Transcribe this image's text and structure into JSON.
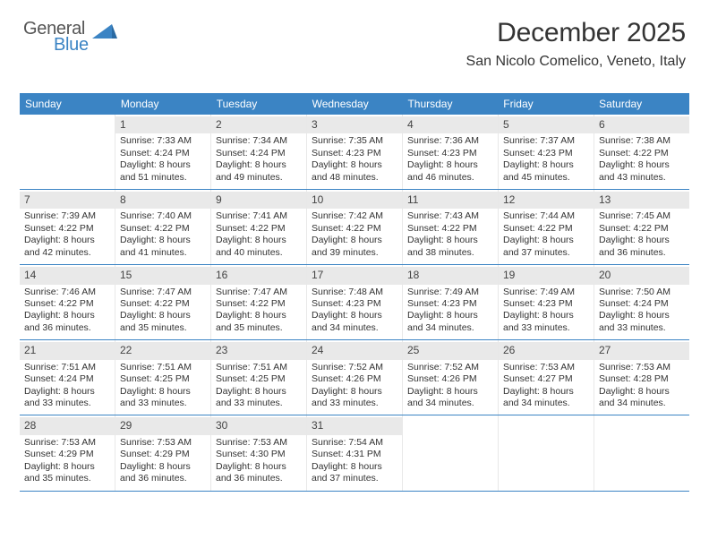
{
  "logo": {
    "general": "General",
    "blue": "Blue",
    "blue_color": "#3b84c4",
    "gray_color": "#555555"
  },
  "header": {
    "title": "December 2025",
    "location": "San Nicolo Comelico, Veneto, Italy"
  },
  "colors": {
    "header_bg": "#3b84c4",
    "header_fg": "#ffffff",
    "daynum_bg": "#e9e9e9",
    "row_border": "#3b84c4"
  },
  "days_of_week": [
    "Sunday",
    "Monday",
    "Tuesday",
    "Wednesday",
    "Thursday",
    "Friday",
    "Saturday"
  ],
  "weeks": [
    [
      {
        "n": "",
        "sr": "",
        "ss": "",
        "dl": ""
      },
      {
        "n": "1",
        "sr": "Sunrise: 7:33 AM",
        "ss": "Sunset: 4:24 PM",
        "dl": "Daylight: 8 hours and 51 minutes."
      },
      {
        "n": "2",
        "sr": "Sunrise: 7:34 AM",
        "ss": "Sunset: 4:24 PM",
        "dl": "Daylight: 8 hours and 49 minutes."
      },
      {
        "n": "3",
        "sr": "Sunrise: 7:35 AM",
        "ss": "Sunset: 4:23 PM",
        "dl": "Daylight: 8 hours and 48 minutes."
      },
      {
        "n": "4",
        "sr": "Sunrise: 7:36 AM",
        "ss": "Sunset: 4:23 PM",
        "dl": "Daylight: 8 hours and 46 minutes."
      },
      {
        "n": "5",
        "sr": "Sunrise: 7:37 AM",
        "ss": "Sunset: 4:23 PM",
        "dl": "Daylight: 8 hours and 45 minutes."
      },
      {
        "n": "6",
        "sr": "Sunrise: 7:38 AM",
        "ss": "Sunset: 4:22 PM",
        "dl": "Daylight: 8 hours and 43 minutes."
      }
    ],
    [
      {
        "n": "7",
        "sr": "Sunrise: 7:39 AM",
        "ss": "Sunset: 4:22 PM",
        "dl": "Daylight: 8 hours and 42 minutes."
      },
      {
        "n": "8",
        "sr": "Sunrise: 7:40 AM",
        "ss": "Sunset: 4:22 PM",
        "dl": "Daylight: 8 hours and 41 minutes."
      },
      {
        "n": "9",
        "sr": "Sunrise: 7:41 AM",
        "ss": "Sunset: 4:22 PM",
        "dl": "Daylight: 8 hours and 40 minutes."
      },
      {
        "n": "10",
        "sr": "Sunrise: 7:42 AM",
        "ss": "Sunset: 4:22 PM",
        "dl": "Daylight: 8 hours and 39 minutes."
      },
      {
        "n": "11",
        "sr": "Sunrise: 7:43 AM",
        "ss": "Sunset: 4:22 PM",
        "dl": "Daylight: 8 hours and 38 minutes."
      },
      {
        "n": "12",
        "sr": "Sunrise: 7:44 AM",
        "ss": "Sunset: 4:22 PM",
        "dl": "Daylight: 8 hours and 37 minutes."
      },
      {
        "n": "13",
        "sr": "Sunrise: 7:45 AM",
        "ss": "Sunset: 4:22 PM",
        "dl": "Daylight: 8 hours and 36 minutes."
      }
    ],
    [
      {
        "n": "14",
        "sr": "Sunrise: 7:46 AM",
        "ss": "Sunset: 4:22 PM",
        "dl": "Daylight: 8 hours and 36 minutes."
      },
      {
        "n": "15",
        "sr": "Sunrise: 7:47 AM",
        "ss": "Sunset: 4:22 PM",
        "dl": "Daylight: 8 hours and 35 minutes."
      },
      {
        "n": "16",
        "sr": "Sunrise: 7:47 AM",
        "ss": "Sunset: 4:22 PM",
        "dl": "Daylight: 8 hours and 35 minutes."
      },
      {
        "n": "17",
        "sr": "Sunrise: 7:48 AM",
        "ss": "Sunset: 4:23 PM",
        "dl": "Daylight: 8 hours and 34 minutes."
      },
      {
        "n": "18",
        "sr": "Sunrise: 7:49 AM",
        "ss": "Sunset: 4:23 PM",
        "dl": "Daylight: 8 hours and 34 minutes."
      },
      {
        "n": "19",
        "sr": "Sunrise: 7:49 AM",
        "ss": "Sunset: 4:23 PM",
        "dl": "Daylight: 8 hours and 33 minutes."
      },
      {
        "n": "20",
        "sr": "Sunrise: 7:50 AM",
        "ss": "Sunset: 4:24 PM",
        "dl": "Daylight: 8 hours and 33 minutes."
      }
    ],
    [
      {
        "n": "21",
        "sr": "Sunrise: 7:51 AM",
        "ss": "Sunset: 4:24 PM",
        "dl": "Daylight: 8 hours and 33 minutes."
      },
      {
        "n": "22",
        "sr": "Sunrise: 7:51 AM",
        "ss": "Sunset: 4:25 PM",
        "dl": "Daylight: 8 hours and 33 minutes."
      },
      {
        "n": "23",
        "sr": "Sunrise: 7:51 AM",
        "ss": "Sunset: 4:25 PM",
        "dl": "Daylight: 8 hours and 33 minutes."
      },
      {
        "n": "24",
        "sr": "Sunrise: 7:52 AM",
        "ss": "Sunset: 4:26 PM",
        "dl": "Daylight: 8 hours and 33 minutes."
      },
      {
        "n": "25",
        "sr": "Sunrise: 7:52 AM",
        "ss": "Sunset: 4:26 PM",
        "dl": "Daylight: 8 hours and 34 minutes."
      },
      {
        "n": "26",
        "sr": "Sunrise: 7:53 AM",
        "ss": "Sunset: 4:27 PM",
        "dl": "Daylight: 8 hours and 34 minutes."
      },
      {
        "n": "27",
        "sr": "Sunrise: 7:53 AM",
        "ss": "Sunset: 4:28 PM",
        "dl": "Daylight: 8 hours and 34 minutes."
      }
    ],
    [
      {
        "n": "28",
        "sr": "Sunrise: 7:53 AM",
        "ss": "Sunset: 4:29 PM",
        "dl": "Daylight: 8 hours and 35 minutes."
      },
      {
        "n": "29",
        "sr": "Sunrise: 7:53 AM",
        "ss": "Sunset: 4:29 PM",
        "dl": "Daylight: 8 hours and 36 minutes."
      },
      {
        "n": "30",
        "sr": "Sunrise: 7:53 AM",
        "ss": "Sunset: 4:30 PM",
        "dl": "Daylight: 8 hours and 36 minutes."
      },
      {
        "n": "31",
        "sr": "Sunrise: 7:54 AM",
        "ss": "Sunset: 4:31 PM",
        "dl": "Daylight: 8 hours and 37 minutes."
      },
      {
        "n": "",
        "sr": "",
        "ss": "",
        "dl": ""
      },
      {
        "n": "",
        "sr": "",
        "ss": "",
        "dl": ""
      },
      {
        "n": "",
        "sr": "",
        "ss": "",
        "dl": ""
      }
    ]
  ]
}
